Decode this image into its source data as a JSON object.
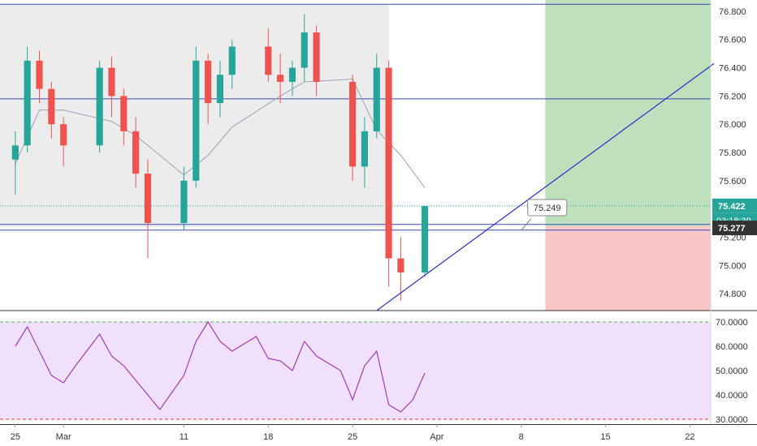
{
  "chart_data": [
    {
      "type": "candlestick",
      "panel": "price",
      "ylim": [
        74.68,
        76.88
      ],
      "yticks": [
        {
          "value": 76.8,
          "label": "76.800"
        },
        {
          "value": 76.6,
          "label": "76.600"
        },
        {
          "value": 76.4,
          "label": "76.400"
        },
        {
          "value": 76.2,
          "label": "76.200"
        },
        {
          "value": 76.0,
          "label": "76.000"
        },
        {
          "value": 75.8,
          "label": "75.800"
        },
        {
          "value": 75.6,
          "label": "75.600"
        },
        {
          "value": 75.2,
          "label": "75.200"
        },
        {
          "value": 75.0,
          "label": "75.000"
        },
        {
          "value": 74.8,
          "label": "74.800"
        }
      ],
      "series": [
        {
          "type": "candlestick",
          "candles": [
            {
              "d": "2019-02-25",
              "o": 75.75,
              "h": 75.95,
              "l": 75.5,
              "c": 75.85
            },
            {
              "d": "2019-02-26",
              "o": 75.85,
              "h": 76.55,
              "l": 75.8,
              "c": 76.45
            },
            {
              "d": "2019-02-27",
              "o": 76.45,
              "h": 76.52,
              "l": 76.15,
              "c": 76.25
            },
            {
              "d": "2019-02-28",
              "o": 76.25,
              "h": 76.3,
              "l": 75.9,
              "c": 76.0
            },
            {
              "d": "2019-03-01",
              "o": 76.0,
              "h": 76.05,
              "l": 75.7,
              "c": 75.85
            },
            {
              "d": "2019-03-04",
              "o": 75.85,
              "h": 76.45,
              "l": 75.8,
              "c": 76.4
            },
            {
              "d": "2019-03-05",
              "o": 76.4,
              "h": 76.48,
              "l": 76.05,
              "c": 76.2
            },
            {
              "d": "2019-03-06",
              "o": 76.2,
              "h": 76.25,
              "l": 75.85,
              "c": 75.95
            },
            {
              "d": "2019-03-07",
              "o": 75.95,
              "h": 76.05,
              "l": 75.55,
              "c": 75.65
            },
            {
              "d": "2019-03-08",
              "o": 75.65,
              "h": 75.75,
              "l": 75.05,
              "c": 75.3
            },
            {
              "d": "2019-03-11",
              "o": 75.3,
              "h": 75.7,
              "l": 75.25,
              "c": 75.6
            },
            {
              "d": "2019-03-12",
              "o": 75.6,
              "h": 76.55,
              "l": 75.55,
              "c": 76.45
            },
            {
              "d": "2019-03-13",
              "o": 76.45,
              "h": 76.5,
              "l": 76.0,
              "c": 76.15
            },
            {
              "d": "2019-03-14",
              "o": 76.15,
              "h": 76.45,
              "l": 76.05,
              "c": 76.35
            },
            {
              "d": "2019-03-15",
              "o": 76.35,
              "h": 76.6,
              "l": 76.25,
              "c": 76.55
            },
            {
              "d": "2019-03-18",
              "o": 76.55,
              "h": 76.68,
              "l": 76.3,
              "c": 76.35
            },
            {
              "d": "2019-03-19",
              "o": 76.35,
              "h": 76.5,
              "l": 76.15,
              "c": 76.3
            },
            {
              "d": "2019-03-20",
              "o": 76.3,
              "h": 76.45,
              "l": 76.2,
              "c": 76.4
            },
            {
              "d": "2019-03-21",
              "o": 76.4,
              "h": 76.78,
              "l": 76.3,
              "c": 76.65
            },
            {
              "d": "2019-03-22",
              "o": 76.65,
              "h": 76.7,
              "l": 76.2,
              "c": 76.3
            },
            {
              "d": "2019-03-25",
              "o": 76.3,
              "h": 76.35,
              "l": 75.6,
              "c": 75.7
            },
            {
              "d": "2019-03-26",
              "o": 75.7,
              "h": 76.05,
              "l": 75.55,
              "c": 75.95
            },
            {
              "d": "2019-03-27",
              "o": 75.95,
              "h": 76.5,
              "l": 75.9,
              "c": 76.4
            },
            {
              "d": "2019-03-28",
              "o": 76.4,
              "h": 76.45,
              "l": 74.85,
              "c": 75.05
            },
            {
              "d": "2019-03-29",
              "o": 75.05,
              "h": 75.2,
              "l": 74.75,
              "c": 74.95
            },
            {
              "d": "2019-03-31",
              "o": 74.95,
              "h": 75.42,
              "l": 74.92,
              "c": 75.42
            }
          ]
        },
        {
          "type": "line",
          "name": "",
          "color": "#9aa3b5",
          "x": [
            "2019-02-25",
            "2019-02-27",
            "2019-03-01",
            "2019-03-05",
            "2019-03-07",
            "2019-03-11",
            "2019-03-13",
            "2019-03-15",
            "2019-03-19",
            "2019-03-21",
            "2019-03-25",
            "2019-03-27",
            "2019-03-29",
            "2019-03-31"
          ],
          "y": [
            75.72,
            76.1,
            76.1,
            76.02,
            75.92,
            75.64,
            75.78,
            75.98,
            76.2,
            76.3,
            76.32,
            75.96,
            75.78,
            75.55
          ]
        }
      ],
      "x_axis": {
        "range": [
          "2019-02-24",
          "2019-04-24"
        ],
        "ticks": [
          {
            "date": "2019-02-25",
            "label": "25"
          },
          {
            "date": "2019-03-01",
            "label": "Mar"
          },
          {
            "date": "2019-03-11",
            "label": "11"
          },
          {
            "date": "2019-03-18",
            "label": "18"
          },
          {
            "date": "2019-03-25",
            "label": "25"
          },
          {
            "date": "2019-04-01",
            "label": "Apr"
          },
          {
            "date": "2019-04-08",
            "label": "8"
          },
          {
            "date": "2019-04-15",
            "label": "15"
          },
          {
            "date": "2019-04-22",
            "label": "22"
          }
        ]
      },
      "horizontal_lines": [
        {
          "value": 76.85,
          "color": "#3a4ab0"
        },
        {
          "value": 76.18,
          "color": "#3a4ab0"
        },
        {
          "value": 75.29,
          "color": "#3a4ab0"
        },
        {
          "value": 75.25,
          "color": "#3a4ab0"
        }
      ],
      "range_box": {
        "from": "2019-02-24",
        "to": "2019-03-28",
        "top": 76.85,
        "bottom": 75.27,
        "color": "#ececec"
      },
      "trendline": {
        "from": {
          "d": "2019-03-27",
          "v": 74.68
        },
        "to": {
          "d": "2019-04-24",
          "v": 76.43
        },
        "color": "#2a2dc8"
      },
      "position": {
        "from": "2019-04-10",
        "to": "2019-04-24",
        "entry": 75.277,
        "target": 76.88,
        "stop": 74.68,
        "profit_color": "#bfe0bc",
        "loss_color": "#f8c6c6"
      },
      "current_price_line": {
        "value": 75.422,
        "color": "#26a69a"
      },
      "callout": {
        "label": "75.249",
        "anchor": {
          "d": "2019-04-08",
          "v": 75.249
        }
      },
      "price_labels": {
        "current": {
          "value": 75.422,
          "label": "75.422",
          "bg": "#26a69a"
        },
        "countdown": {
          "label": "03:18:39",
          "bg": "#26a69a"
        },
        "entry": {
          "value": 75.277,
          "label": "75.277",
          "bg": "#333333"
        }
      },
      "colors": {
        "up": "#26a69a",
        "down": "#ef5350"
      }
    },
    {
      "type": "line",
      "panel": "rsi",
      "ylim": [
        28,
        73
      ],
      "yticks": [
        {
          "value": 70,
          "label": "70.0000"
        },
        {
          "value": 60,
          "label": "60.0000"
        },
        {
          "value": 50,
          "label": "50.0000"
        },
        {
          "value": 40,
          "label": "40.0000"
        },
        {
          "value": 30,
          "label": "30.0000"
        }
      ],
      "bands": {
        "upper": 70,
        "lower": 30,
        "fill": "#f0e0fb",
        "upper_color": "#4caf50",
        "lower_color": "#e53935"
      },
      "series": [
        {
          "name": "",
          "color": "#a23cb4",
          "x": [
            "2019-02-25",
            "2019-02-26",
            "2019-02-27",
            "2019-02-28",
            "2019-03-01",
            "2019-03-02",
            "2019-03-04",
            "2019-03-05",
            "2019-03-06",
            "2019-03-07",
            "2019-03-08",
            "2019-03-09",
            "2019-03-11",
            "2019-03-12",
            "2019-03-13",
            "2019-03-14",
            "2019-03-15",
            "2019-03-17",
            "2019-03-18",
            "2019-03-19",
            "2019-03-20",
            "2019-03-21",
            "2019-03-22",
            "2019-03-24",
            "2019-03-25",
            "2019-03-26",
            "2019-03-27",
            "2019-03-28",
            "2019-03-29",
            "2019-03-30",
            "2019-03-31"
          ],
          "y": [
            60,
            68,
            58,
            48,
            45,
            52,
            65,
            56,
            52,
            46,
            40,
            34,
            48,
            62,
            70,
            62,
            58,
            64,
            55,
            54,
            50,
            62,
            56,
            50,
            38,
            52,
            58,
            36,
            33,
            38,
            49
          ]
        }
      ]
    }
  ]
}
